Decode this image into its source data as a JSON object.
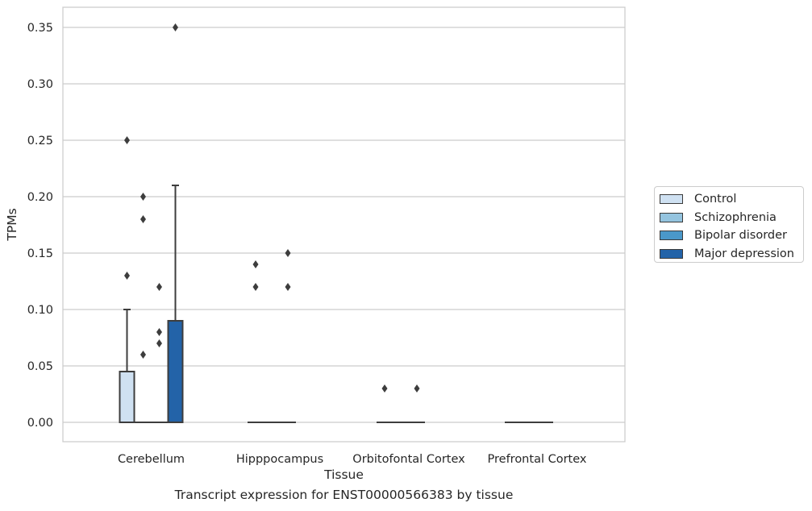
{
  "chart_data": {
    "type": "box",
    "xlabel": "Tissue",
    "ylabel": "TPMs",
    "ylim": [
      -0.017,
      0.368
    ],
    "yticks": [
      0.0,
      0.05,
      0.1,
      0.15,
      0.2,
      0.25,
      0.3,
      0.35
    ],
    "ytick_labels": [
      "0.00",
      "0.05",
      "0.10",
      "0.15",
      "0.20",
      "0.25",
      "0.30",
      "0.35"
    ],
    "grid": "horizontal",
    "legend_position": "right",
    "categories": [
      "Cerebellum",
      "Hipppocampus",
      "Orbitofontal Cortex",
      "Prefrontal Cortex"
    ],
    "series": [
      {
        "name": "Control",
        "color": "#cfe1f2",
        "boxes": [
          {
            "q1": 0,
            "median": 0,
            "q3": 0.045,
            "whisker_low": 0,
            "whisker_high": 0.1,
            "outliers": [
              0.25,
              0.13
            ]
          },
          {
            "q1": 0,
            "median": 0,
            "q3": 0,
            "whisker_low": 0,
            "whisker_high": 0,
            "outliers": [
              0.14,
              0.12
            ]
          },
          {
            "q1": 0,
            "median": 0,
            "q3": 0,
            "whisker_low": 0,
            "whisker_high": 0,
            "outliers": [
              0.03
            ]
          },
          {
            "q1": 0,
            "median": 0,
            "q3": 0,
            "whisker_low": 0,
            "whisker_high": 0,
            "outliers": []
          }
        ]
      },
      {
        "name": "Schizophrenia",
        "color": "#94c4df",
        "boxes": [
          {
            "q1": 0,
            "median": 0,
            "q3": 0,
            "whisker_low": 0,
            "whisker_high": 0,
            "outliers": [
              0.2,
              0.18,
              0.06
            ]
          },
          {
            "q1": 0,
            "median": 0,
            "q3": 0,
            "whisker_low": 0,
            "whisker_high": 0,
            "outliers": []
          },
          {
            "q1": 0,
            "median": 0,
            "q3": 0,
            "whisker_low": 0,
            "whisker_high": 0,
            "outliers": []
          },
          {
            "q1": 0,
            "median": 0,
            "q3": 0,
            "whisker_low": 0,
            "whisker_high": 0,
            "outliers": []
          }
        ]
      },
      {
        "name": "Bipolar disorder",
        "color": "#4a98c9",
        "boxes": [
          {
            "q1": 0,
            "median": 0,
            "q3": 0,
            "whisker_low": 0,
            "whisker_high": 0,
            "outliers": [
              0.12,
              0.08,
              0.07
            ]
          },
          {
            "q1": 0,
            "median": 0,
            "q3": 0,
            "whisker_low": 0,
            "whisker_high": 0,
            "outliers": [
              0.15,
              0.12
            ]
          },
          {
            "q1": 0,
            "median": 0,
            "q3": 0,
            "whisker_low": 0,
            "whisker_high": 0,
            "outliers": [
              0.03
            ]
          },
          {
            "q1": 0,
            "median": 0,
            "q3": 0,
            "whisker_low": 0,
            "whisker_high": 0,
            "outliers": []
          }
        ]
      },
      {
        "name": "Major depression",
        "color": "#2363a8",
        "boxes": [
          {
            "q1": 0,
            "median": 0,
            "q3": 0.09,
            "whisker_low": 0,
            "whisker_high": 0.21,
            "outliers": [
              0.35
            ]
          },
          null,
          null,
          null
        ]
      }
    ]
  },
  "caption": "Transcript expression for ENST00000566383 by tissue"
}
